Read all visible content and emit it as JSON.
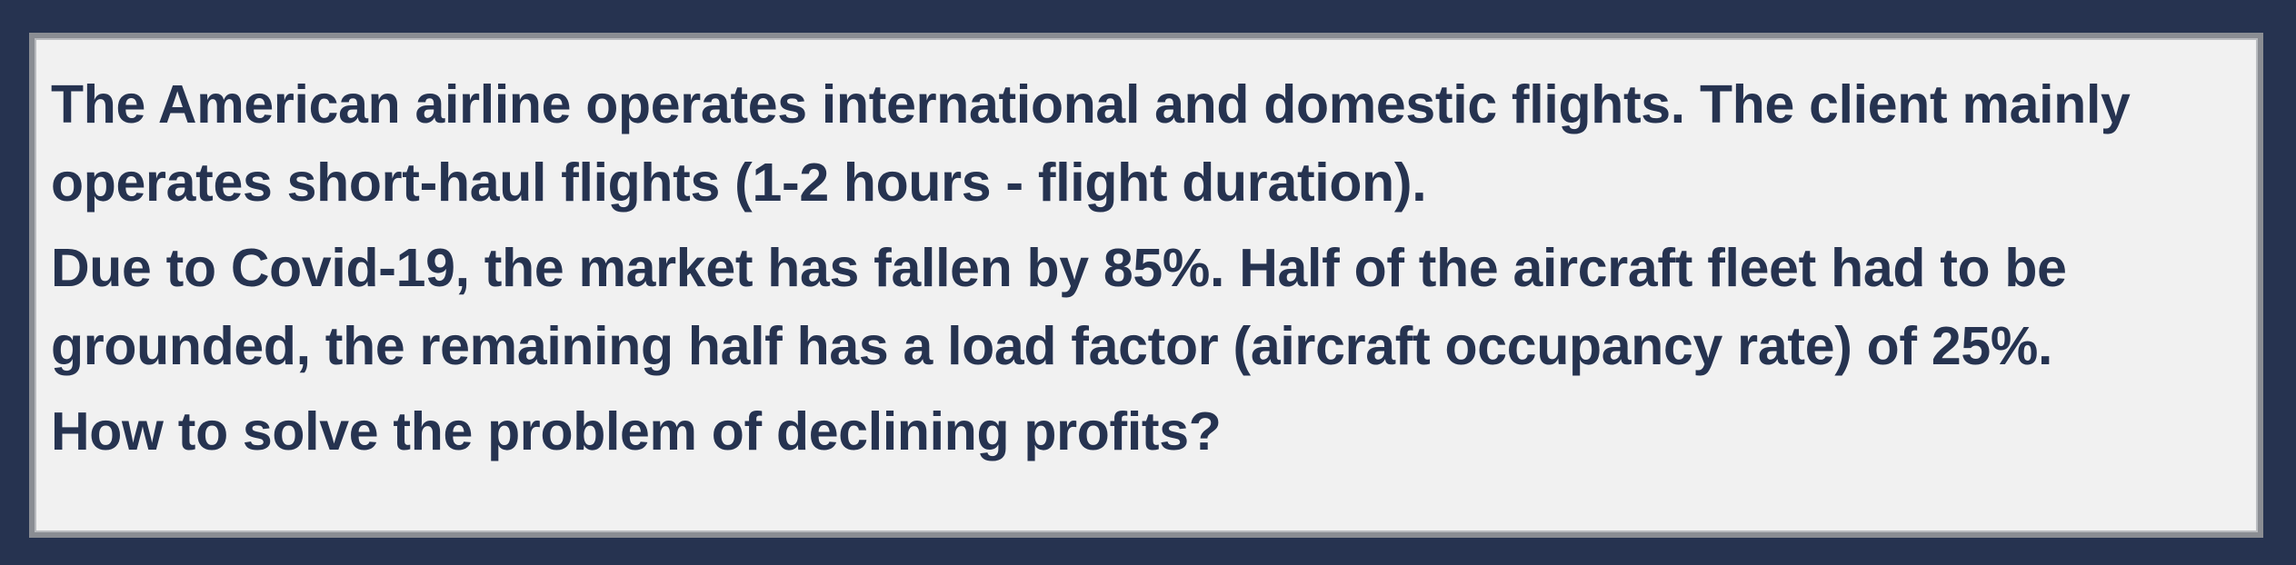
{
  "slide": {
    "paragraphs": [
      "The American airline operates international and domestic flights. The client mainly operates short-haul flights (1-2 hours - flight duration).",
      "Due to Covid-19, the market has fallen by 85%. Half of the aircraft fleet had to be grounded, the remaining half has a load factor (aircraft occupancy rate) of 25%.",
      "How to solve the problem of declining profits?"
    ]
  },
  "colors": {
    "background": "#263350",
    "panel": "#f1f1f1",
    "border": "#8a8d93",
    "text": "#263350"
  }
}
